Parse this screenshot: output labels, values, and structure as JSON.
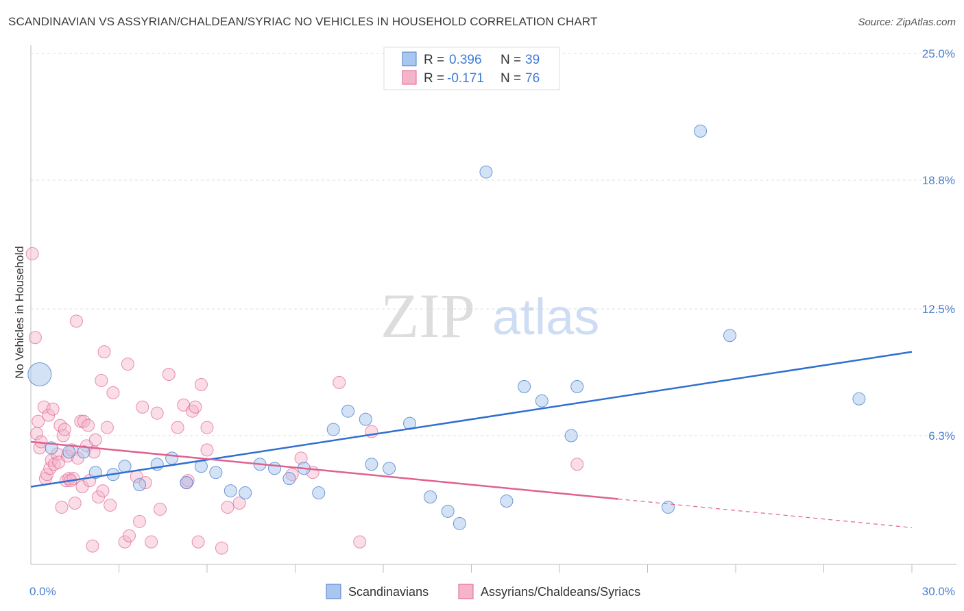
{
  "title": "SCANDINAVIAN VS ASSYRIAN/CHALDEAN/SYRIAC NO VEHICLES IN HOUSEHOLD CORRELATION CHART",
  "source": "Source: ZipAtlas.com",
  "watermark": {
    "zip": "ZIP",
    "atlas": "atlas"
  },
  "colors": {
    "blue": "#4a7fd0",
    "blue_fill": "#a9c6ee",
    "blue_line": "#2f6fd0",
    "pink_fill": "#f5b4c9",
    "pink_line": "#e0608e",
    "grid": "#dddddd"
  },
  "legend": {
    "rows": [
      {
        "r_label": "R =",
        "r_value": "0.396",
        "n_label": "N =",
        "n_value": "39",
        "color": "blue"
      },
      {
        "r_label": "R =",
        "r_value": "-0.171",
        "n_label": "N =",
        "n_value": "76",
        "color": "pink"
      }
    ]
  },
  "bottom_legend": [
    {
      "label": "Scandinavians",
      "color": "blue"
    },
    {
      "label": "Assyrians/Chaldeans/Syriacs",
      "color": "pink"
    }
  ],
  "chart_data": {
    "type": "scatter",
    "title": "SCANDINAVIAN VS ASSYRIAN/CHALDEAN/SYRIAC NO VEHICLES IN HOUSEHOLD CORRELATION CHART",
    "xlabel": "",
    "ylabel": "No Vehicles in Household",
    "xlim": [
      0,
      30
    ],
    "ylim": [
      0,
      25
    ],
    "x_tick_labels": [
      "0.0%",
      "30.0%"
    ],
    "y_ticks": [
      6.3,
      12.5,
      18.8,
      25.0
    ],
    "y_tick_labels": [
      "6.3%",
      "12.5%",
      "18.8%",
      "25.0%"
    ],
    "grid": true,
    "legend_position": "top-center",
    "series": [
      {
        "name": "Scandinavians",
        "color": "blue",
        "trend": {
          "x": [
            0,
            30
          ],
          "y": [
            3.8,
            10.4
          ],
          "dashed_from": null
        },
        "points": [
          {
            "x": 0.3,
            "y": 9.3,
            "big": true
          },
          {
            "x": 0.7,
            "y": 5.7
          },
          {
            "x": 1.3,
            "y": 5.5
          },
          {
            "x": 1.8,
            "y": 5.5
          },
          {
            "x": 2.2,
            "y": 4.5
          },
          {
            "x": 2.8,
            "y": 4.4
          },
          {
            "x": 3.2,
            "y": 4.8
          },
          {
            "x": 3.7,
            "y": 3.9
          },
          {
            "x": 4.3,
            "y": 4.9
          },
          {
            "x": 4.8,
            "y": 5.2
          },
          {
            "x": 5.3,
            "y": 4.0
          },
          {
            "x": 5.8,
            "y": 4.8
          },
          {
            "x": 6.3,
            "y": 4.5
          },
          {
            "x": 6.8,
            "y": 3.6
          },
          {
            "x": 7.3,
            "y": 3.5
          },
          {
            "x": 7.8,
            "y": 4.9
          },
          {
            "x": 8.3,
            "y": 4.7
          },
          {
            "x": 8.8,
            "y": 4.2
          },
          {
            "x": 9.3,
            "y": 4.7
          },
          {
            "x": 9.8,
            "y": 3.5
          },
          {
            "x": 10.3,
            "y": 6.6
          },
          {
            "x": 10.8,
            "y": 7.5
          },
          {
            "x": 11.4,
            "y": 7.1
          },
          {
            "x": 11.6,
            "y": 4.9
          },
          {
            "x": 12.2,
            "y": 4.7
          },
          {
            "x": 12.9,
            "y": 6.9
          },
          {
            "x": 13.6,
            "y": 3.3
          },
          {
            "x": 14.2,
            "y": 2.6
          },
          {
            "x": 14.6,
            "y": 2.0
          },
          {
            "x": 15.5,
            "y": 19.2
          },
          {
            "x": 16.2,
            "y": 3.1
          },
          {
            "x": 16.8,
            "y": 8.7
          },
          {
            "x": 17.4,
            "y": 8.0
          },
          {
            "x": 18.4,
            "y": 6.3
          },
          {
            "x": 18.6,
            "y": 8.7
          },
          {
            "x": 21.7,
            "y": 2.8
          },
          {
            "x": 22.8,
            "y": 21.2
          },
          {
            "x": 23.8,
            "y": 11.2
          },
          {
            "x": 28.2,
            "y": 8.1
          }
        ]
      },
      {
        "name": "Assyrians/Chaldeans/Syriacs",
        "color": "pink",
        "trend": {
          "x": [
            0,
            30
          ],
          "y": [
            6.0,
            1.8
          ],
          "dashed_from": 20
        },
        "points": [
          {
            "x": 0.05,
            "y": 15.2
          },
          {
            "x": 0.15,
            "y": 11.1
          },
          {
            "x": 0.2,
            "y": 6.4
          },
          {
            "x": 0.25,
            "y": 7.0
          },
          {
            "x": 0.3,
            "y": 5.7
          },
          {
            "x": 0.35,
            "y": 6.0
          },
          {
            "x": 0.45,
            "y": 7.7
          },
          {
            "x": 0.5,
            "y": 4.2
          },
          {
            "x": 0.55,
            "y": 4.4
          },
          {
            "x": 0.6,
            "y": 7.3
          },
          {
            "x": 0.65,
            "y": 4.7
          },
          {
            "x": 0.7,
            "y": 5.1
          },
          {
            "x": 0.75,
            "y": 7.6
          },
          {
            "x": 0.8,
            "y": 4.9
          },
          {
            "x": 0.9,
            "y": 5.4
          },
          {
            "x": 0.95,
            "y": 5.0
          },
          {
            "x": 1.0,
            "y": 6.8
          },
          {
            "x": 1.05,
            "y": 2.8
          },
          {
            "x": 1.1,
            "y": 6.3
          },
          {
            "x": 1.15,
            "y": 6.6
          },
          {
            "x": 1.2,
            "y": 4.1
          },
          {
            "x": 1.25,
            "y": 5.3
          },
          {
            "x": 1.3,
            "y": 4.2
          },
          {
            "x": 1.4,
            "y": 5.6
          },
          {
            "x": 1.45,
            "y": 4.2
          },
          {
            "x": 1.5,
            "y": 3.0
          },
          {
            "x": 1.55,
            "y": 11.9
          },
          {
            "x": 1.6,
            "y": 5.2
          },
          {
            "x": 1.7,
            "y": 7.0
          },
          {
            "x": 1.75,
            "y": 3.8
          },
          {
            "x": 1.8,
            "y": 7.0
          },
          {
            "x": 1.9,
            "y": 5.8
          },
          {
            "x": 1.95,
            "y": 6.8
          },
          {
            "x": 2.0,
            "y": 4.1
          },
          {
            "x": 2.1,
            "y": 0.9
          },
          {
            "x": 2.15,
            "y": 5.5
          },
          {
            "x": 2.2,
            "y": 6.1
          },
          {
            "x": 2.3,
            "y": 3.3
          },
          {
            "x": 2.4,
            "y": 9.0
          },
          {
            "x": 2.45,
            "y": 3.6
          },
          {
            "x": 2.5,
            "y": 10.4
          },
          {
            "x": 2.6,
            "y": 6.7
          },
          {
            "x": 2.7,
            "y": 2.9
          },
          {
            "x": 2.8,
            "y": 8.4
          },
          {
            "x": 3.2,
            "y": 1.1
          },
          {
            "x": 3.3,
            "y": 9.8
          },
          {
            "x": 3.35,
            "y": 1.4
          },
          {
            "x": 3.6,
            "y": 4.3
          },
          {
            "x": 3.7,
            "y": 2.1
          },
          {
            "x": 3.8,
            "y": 7.7
          },
          {
            "x": 3.9,
            "y": 4.0
          },
          {
            "x": 4.1,
            "y": 1.1
          },
          {
            "x": 4.3,
            "y": 7.4
          },
          {
            "x": 4.4,
            "y": 2.7
          },
          {
            "x": 4.7,
            "y": 9.3
          },
          {
            "x": 5.0,
            "y": 6.7
          },
          {
            "x": 5.2,
            "y": 7.8
          },
          {
            "x": 5.3,
            "y": 4.0
          },
          {
            "x": 5.35,
            "y": 4.1
          },
          {
            "x": 5.5,
            "y": 7.5
          },
          {
            "x": 5.6,
            "y": 7.7
          },
          {
            "x": 5.7,
            "y": 1.1
          },
          {
            "x": 5.8,
            "y": 8.8
          },
          {
            "x": 6.0,
            "y": 6.7
          },
          {
            "x": 6.0,
            "y": 5.6
          },
          {
            "x": 6.5,
            "y": 0.8
          },
          {
            "x": 6.7,
            "y": 2.8
          },
          {
            "x": 7.1,
            "y": 3.0
          },
          {
            "x": 8.9,
            "y": 4.4
          },
          {
            "x": 9.2,
            "y": 5.2
          },
          {
            "x": 9.6,
            "y": 4.5
          },
          {
            "x": 10.5,
            "y": 8.9
          },
          {
            "x": 11.2,
            "y": 1.1
          },
          {
            "x": 11.6,
            "y": 6.5
          },
          {
            "x": 18.6,
            "y": 4.9
          },
          {
            "x": 1.35,
            "y": 4.1
          }
        ]
      }
    ]
  }
}
